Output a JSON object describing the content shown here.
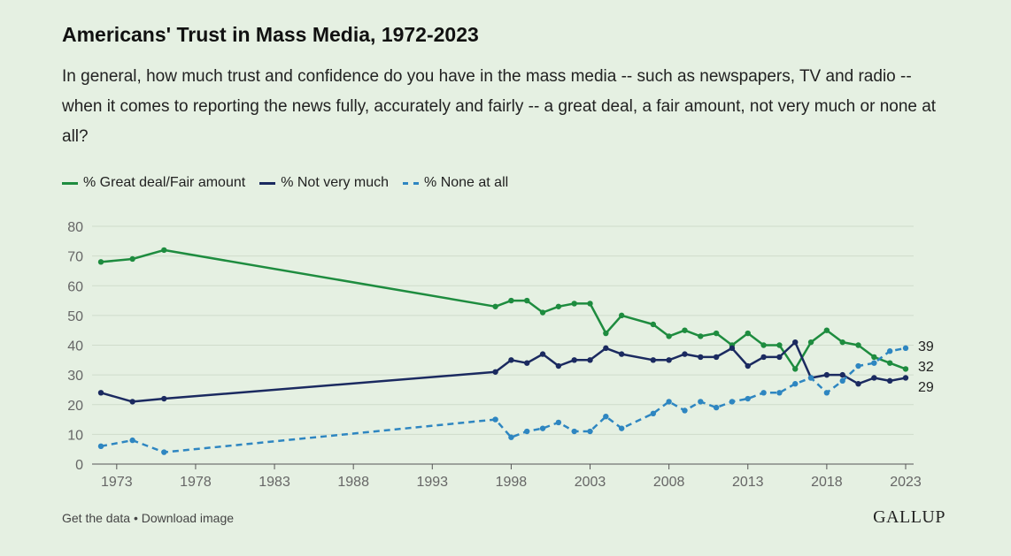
{
  "title": "Americans' Trust in Mass Media, 1972-2023",
  "subtitle": "In general, how much trust and confidence do you have in the mass media -- such as newspapers, TV and radio -- when it comes to reporting the news fully, accurately and fairly -- a great deal, a fair amount, not very much or none at all?",
  "footer": {
    "get_data": "Get the data",
    "separator": " • ",
    "download": "Download image",
    "brand": "GALLUP"
  },
  "chart_data": {
    "type": "line",
    "xlabel": "",
    "ylabel": "",
    "xlim": [
      1972,
      2023
    ],
    "ylim": [
      0,
      80
    ],
    "x_ticks": [
      1973,
      1978,
      1983,
      1988,
      1993,
      1998,
      2003,
      2008,
      2013,
      2018,
      2023
    ],
    "y_ticks": [
      0,
      10,
      20,
      30,
      40,
      50,
      60,
      70,
      80
    ],
    "grid": true,
    "legend_position": "top-left",
    "end_labels": [
      "39",
      "32",
      "29"
    ],
    "series": [
      {
        "name": "% Great deal/Fair amount",
        "color": "#1e8c3f",
        "style": "solid",
        "x": [
          1972,
          1974,
          1976,
          1997,
          1998,
          1999,
          2000,
          2001,
          2002,
          2003,
          2004,
          2005,
          2007,
          2008,
          2009,
          2010,
          2011,
          2012,
          2013,
          2014,
          2015,
          2016,
          2017,
          2018,
          2019,
          2020,
          2021,
          2022,
          2023
        ],
        "values": [
          68,
          69,
          72,
          53,
          55,
          55,
          51,
          53,
          54,
          54,
          44,
          50,
          47,
          43,
          45,
          43,
          44,
          40,
          44,
          40,
          40,
          32,
          41,
          45,
          41,
          40,
          36,
          34,
          32
        ]
      },
      {
        "name": "% Not very much",
        "color": "#1b2a60",
        "style": "solid",
        "x": [
          1972,
          1974,
          1976,
          1997,
          1998,
          1999,
          2000,
          2001,
          2002,
          2003,
          2004,
          2005,
          2007,
          2008,
          2009,
          2010,
          2011,
          2012,
          2013,
          2014,
          2015,
          2016,
          2017,
          2018,
          2019,
          2020,
          2021,
          2022,
          2023
        ],
        "values": [
          24,
          21,
          22,
          31,
          35,
          34,
          37,
          33,
          35,
          35,
          39,
          37,
          35,
          35,
          37,
          36,
          36,
          39,
          33,
          36,
          36,
          41,
          29,
          30,
          30,
          27,
          29,
          28,
          29
        ]
      },
      {
        "name": "% None at all",
        "color": "#2e86c1",
        "style": "dashed",
        "x": [
          1972,
          1974,
          1976,
          1997,
          1998,
          1999,
          2000,
          2001,
          2002,
          2003,
          2004,
          2005,
          2007,
          2008,
          2009,
          2010,
          2011,
          2012,
          2013,
          2014,
          2015,
          2016,
          2017,
          2018,
          2019,
          2020,
          2021,
          2022,
          2023
        ],
        "values": [
          6,
          8,
          4,
          15,
          9,
          11,
          12,
          14,
          11,
          11,
          16,
          12,
          17,
          21,
          18,
          21,
          19,
          21,
          22,
          24,
          24,
          27,
          29,
          24,
          28,
          33,
          34,
          38,
          39
        ]
      }
    ]
  }
}
